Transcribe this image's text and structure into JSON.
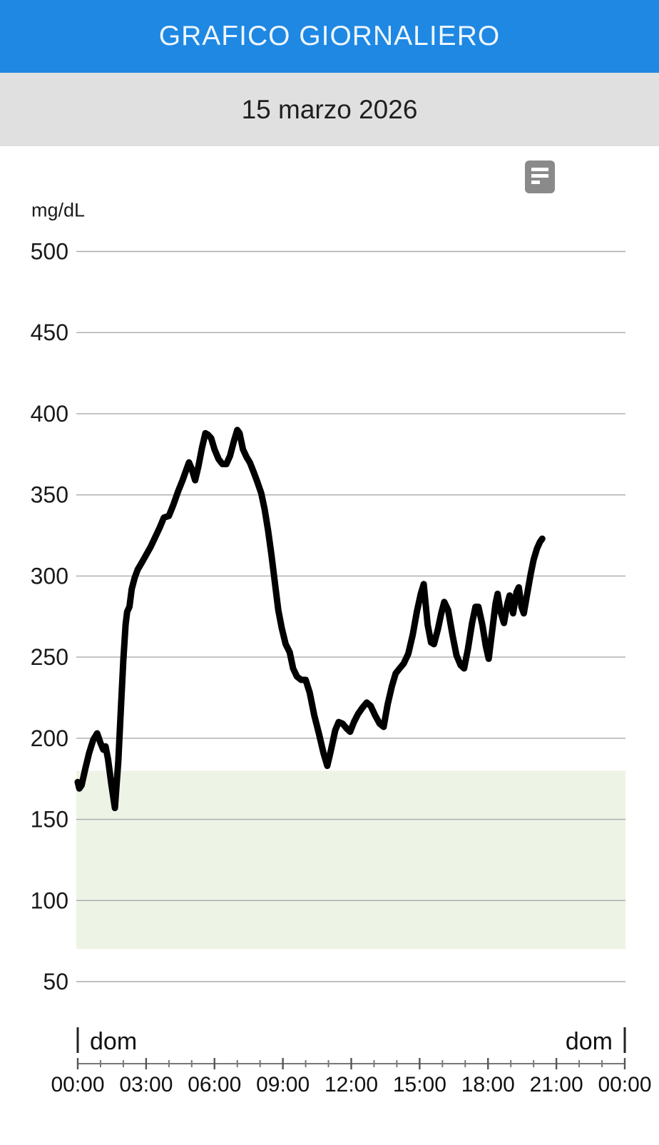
{
  "header": {
    "title": "GRAFICO GIORNALIERO",
    "background_color": "#1e88e3",
    "title_color": "#eef6fc"
  },
  "date_bar": {
    "date": "15 marzo 2026",
    "background_color": "#e0e0e0",
    "text_color": "#1f1f1f"
  },
  "toolbar": {
    "notes_icon": "notes-icon",
    "icon_color": "#8a8a8a"
  },
  "chart_data": {
    "type": "line",
    "title": "Grafico giornaliero 15 marzo 2026",
    "ylabel": "mg/dL",
    "xlabel": "",
    "y_ticks": [
      500,
      450,
      400,
      350,
      300,
      250,
      200,
      150,
      100,
      50
    ],
    "ylim": [
      50,
      500
    ],
    "xlim_hours": [
      0,
      24
    ],
    "x_tick_labels": [
      "00:00",
      "03:00",
      "06:00",
      "09:00",
      "12:00",
      "15:00",
      "18:00",
      "21:00",
      "00:00"
    ],
    "x_major_every_hours": 3,
    "x_minor_every_hours": 1,
    "day_label_left": "dom",
    "day_label_right": "dom",
    "grid_on": true,
    "grid_color": "#aaaaaa",
    "axis_color": "#777777",
    "tick_label_color": "#111111",
    "target_range": {
      "low": 70,
      "high": 180,
      "color": "#edf4e5"
    },
    "series": [
      {
        "name": "glucose_mg_dl",
        "color": "#000000",
        "line_width": 9,
        "points": [
          [
            0,
            173
          ],
          [
            0.07,
            169
          ],
          [
            0.17,
            171
          ],
          [
            0.33,
            181
          ],
          [
            0.5,
            191
          ],
          [
            0.68,
            199
          ],
          [
            0.85,
            203
          ],
          [
            1.0,
            197
          ],
          [
            1.12,
            193
          ],
          [
            1.22,
            195
          ],
          [
            1.33,
            187
          ],
          [
            1.47,
            172
          ],
          [
            1.63,
            157
          ],
          [
            1.78,
            186
          ],
          [
            1.9,
            220
          ],
          [
            2.0,
            248
          ],
          [
            2.1,
            270
          ],
          [
            2.17,
            278
          ],
          [
            2.27,
            281
          ],
          [
            2.37,
            292
          ],
          [
            2.5,
            299
          ],
          [
            2.63,
            304
          ],
          [
            2.8,
            308
          ],
          [
            3.0,
            313
          ],
          [
            3.2,
            318
          ],
          [
            3.4,
            324
          ],
          [
            3.6,
            330
          ],
          [
            3.78,
            336
          ],
          [
            4.0,
            337
          ],
          [
            4.2,
            344
          ],
          [
            4.4,
            352
          ],
          [
            4.6,
            359
          ],
          [
            4.75,
            365
          ],
          [
            4.88,
            370
          ],
          [
            5.0,
            366
          ],
          [
            5.15,
            359
          ],
          [
            5.3,
            368
          ],
          [
            5.45,
            379
          ],
          [
            5.6,
            388
          ],
          [
            5.72,
            387
          ],
          [
            5.85,
            385
          ],
          [
            6.0,
            378
          ],
          [
            6.18,
            372
          ],
          [
            6.35,
            369
          ],
          [
            6.52,
            369
          ],
          [
            6.68,
            374
          ],
          [
            6.85,
            383
          ],
          [
            7.0,
            390
          ],
          [
            7.1,
            388
          ],
          [
            7.25,
            378
          ],
          [
            7.42,
            373
          ],
          [
            7.55,
            370
          ],
          [
            7.72,
            364
          ],
          [
            7.88,
            358
          ],
          [
            8.05,
            351
          ],
          [
            8.2,
            341
          ],
          [
            8.35,
            328
          ],
          [
            8.5,
            313
          ],
          [
            8.65,
            296
          ],
          [
            8.8,
            279
          ],
          [
            8.95,
            268
          ],
          [
            9.12,
            258
          ],
          [
            9.3,
            253
          ],
          [
            9.45,
            243
          ],
          [
            9.62,
            238
          ],
          [
            9.8,
            236
          ],
          [
            10.0,
            236
          ],
          [
            10.18,
            228
          ],
          [
            10.38,
            214
          ],
          [
            10.58,
            203
          ],
          [
            10.78,
            191
          ],
          [
            10.95,
            183
          ],
          [
            11.1,
            192
          ],
          [
            11.3,
            205
          ],
          [
            11.45,
            210
          ],
          [
            11.62,
            209
          ],
          [
            11.8,
            206
          ],
          [
            11.95,
            204
          ],
          [
            12.12,
            210
          ],
          [
            12.3,
            215
          ],
          [
            12.5,
            219
          ],
          [
            12.68,
            222
          ],
          [
            12.85,
            220
          ],
          [
            13.05,
            214
          ],
          [
            13.25,
            209
          ],
          [
            13.42,
            207
          ],
          [
            13.6,
            221
          ],
          [
            13.78,
            232
          ],
          [
            13.95,
            240
          ],
          [
            14.12,
            243
          ],
          [
            14.3,
            246
          ],
          [
            14.5,
            252
          ],
          [
            14.7,
            264
          ],
          [
            14.88,
            278
          ],
          [
            15.05,
            289
          ],
          [
            15.18,
            295
          ],
          [
            15.35,
            270
          ],
          [
            15.5,
            259
          ],
          [
            15.63,
            258
          ],
          [
            15.8,
            267
          ],
          [
            15.95,
            277
          ],
          [
            16.08,
            284
          ],
          [
            16.25,
            279
          ],
          [
            16.45,
            263
          ],
          [
            16.62,
            251
          ],
          [
            16.8,
            245
          ],
          [
            16.95,
            243
          ],
          [
            17.12,
            255
          ],
          [
            17.3,
            271
          ],
          [
            17.45,
            281
          ],
          [
            17.58,
            281
          ],
          [
            17.75,
            270
          ],
          [
            17.9,
            257
          ],
          [
            18.03,
            249
          ],
          [
            18.2,
            268
          ],
          [
            18.33,
            283
          ],
          [
            18.42,
            289
          ],
          [
            18.55,
            278
          ],
          [
            18.7,
            271
          ],
          [
            18.85,
            283
          ],
          [
            18.95,
            288
          ],
          [
            19.1,
            277
          ],
          [
            19.25,
            290
          ],
          [
            19.35,
            293
          ],
          [
            19.47,
            281
          ],
          [
            19.57,
            277
          ],
          [
            19.72,
            289
          ],
          [
            19.87,
            301
          ],
          [
            20.0,
            310
          ],
          [
            20.15,
            317
          ],
          [
            20.28,
            321
          ],
          [
            20.38,
            323
          ]
        ]
      }
    ]
  }
}
